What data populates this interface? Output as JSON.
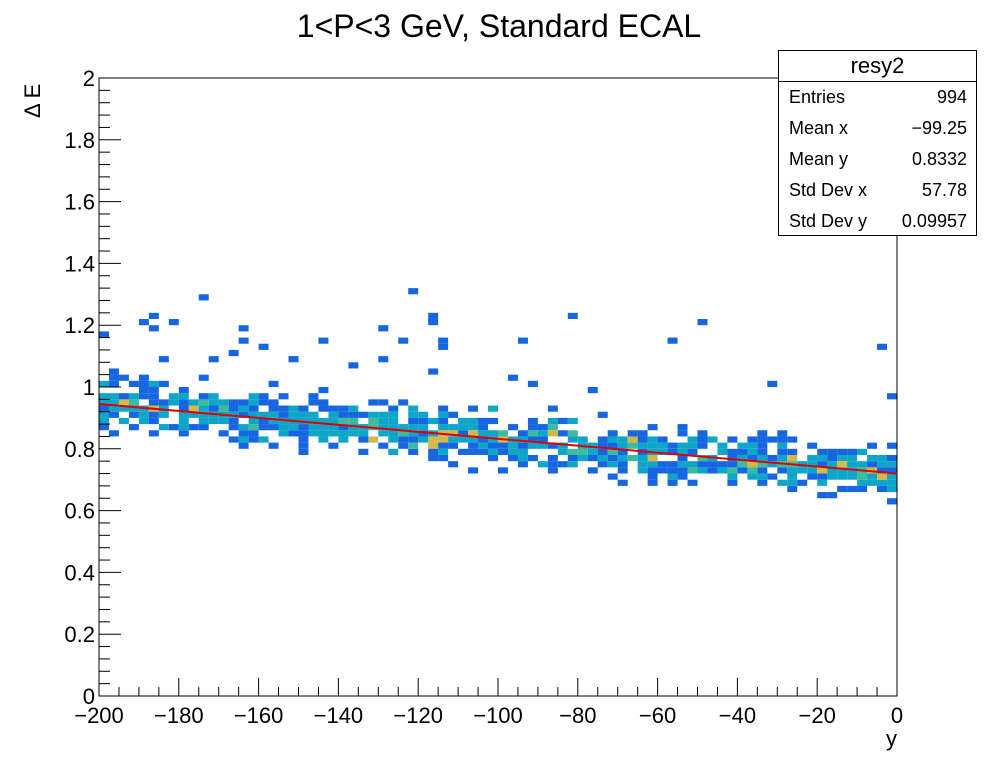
{
  "chart_data": {
    "type": "heatmap",
    "title": "1<P<3 GeV, Standard ECAL",
    "xlabel": "y",
    "ylabel": "Δ E",
    "xlim": [
      -200,
      0
    ],
    "ylim": [
      0,
      2
    ],
    "x_ticks": [
      "−200",
      "−180",
      "−160",
      "−140",
      "−120",
      "−100",
      "−80",
      "−60",
      "−40",
      "−20",
      "0"
    ],
    "y_ticks": [
      "0",
      "0.2",
      "0.4",
      "0.6",
      "0.8",
      "1",
      "1.2",
      "1.4",
      "1.6",
      "1.8",
      "2"
    ],
    "bins": {
      "x_bin_width": 2.5,
      "y_bin_width": 0.02
    },
    "fit": {
      "type": "line",
      "color": "#e00000",
      "points": [
        [
          -200,
          0.945
        ],
        [
          0,
          0.72
        ]
      ]
    },
    "colors": {
      "low": "#1566e0",
      "mid": "#0da5c8",
      "high": "#3dbb9c",
      "peak": "#d4b84a"
    },
    "stats": {
      "title": "resy2",
      "rows": [
        {
          "key": "Entries",
          "value": "994"
        },
        {
          "key": "Mean x",
          "value": "−99.25"
        },
        {
          "key": "Mean y",
          "value": "0.8332"
        },
        {
          "key": "Std Dev x",
          "value": "57.78"
        },
        {
          "key": "Std Dev y",
          "value": "0.09957"
        }
      ]
    }
  }
}
